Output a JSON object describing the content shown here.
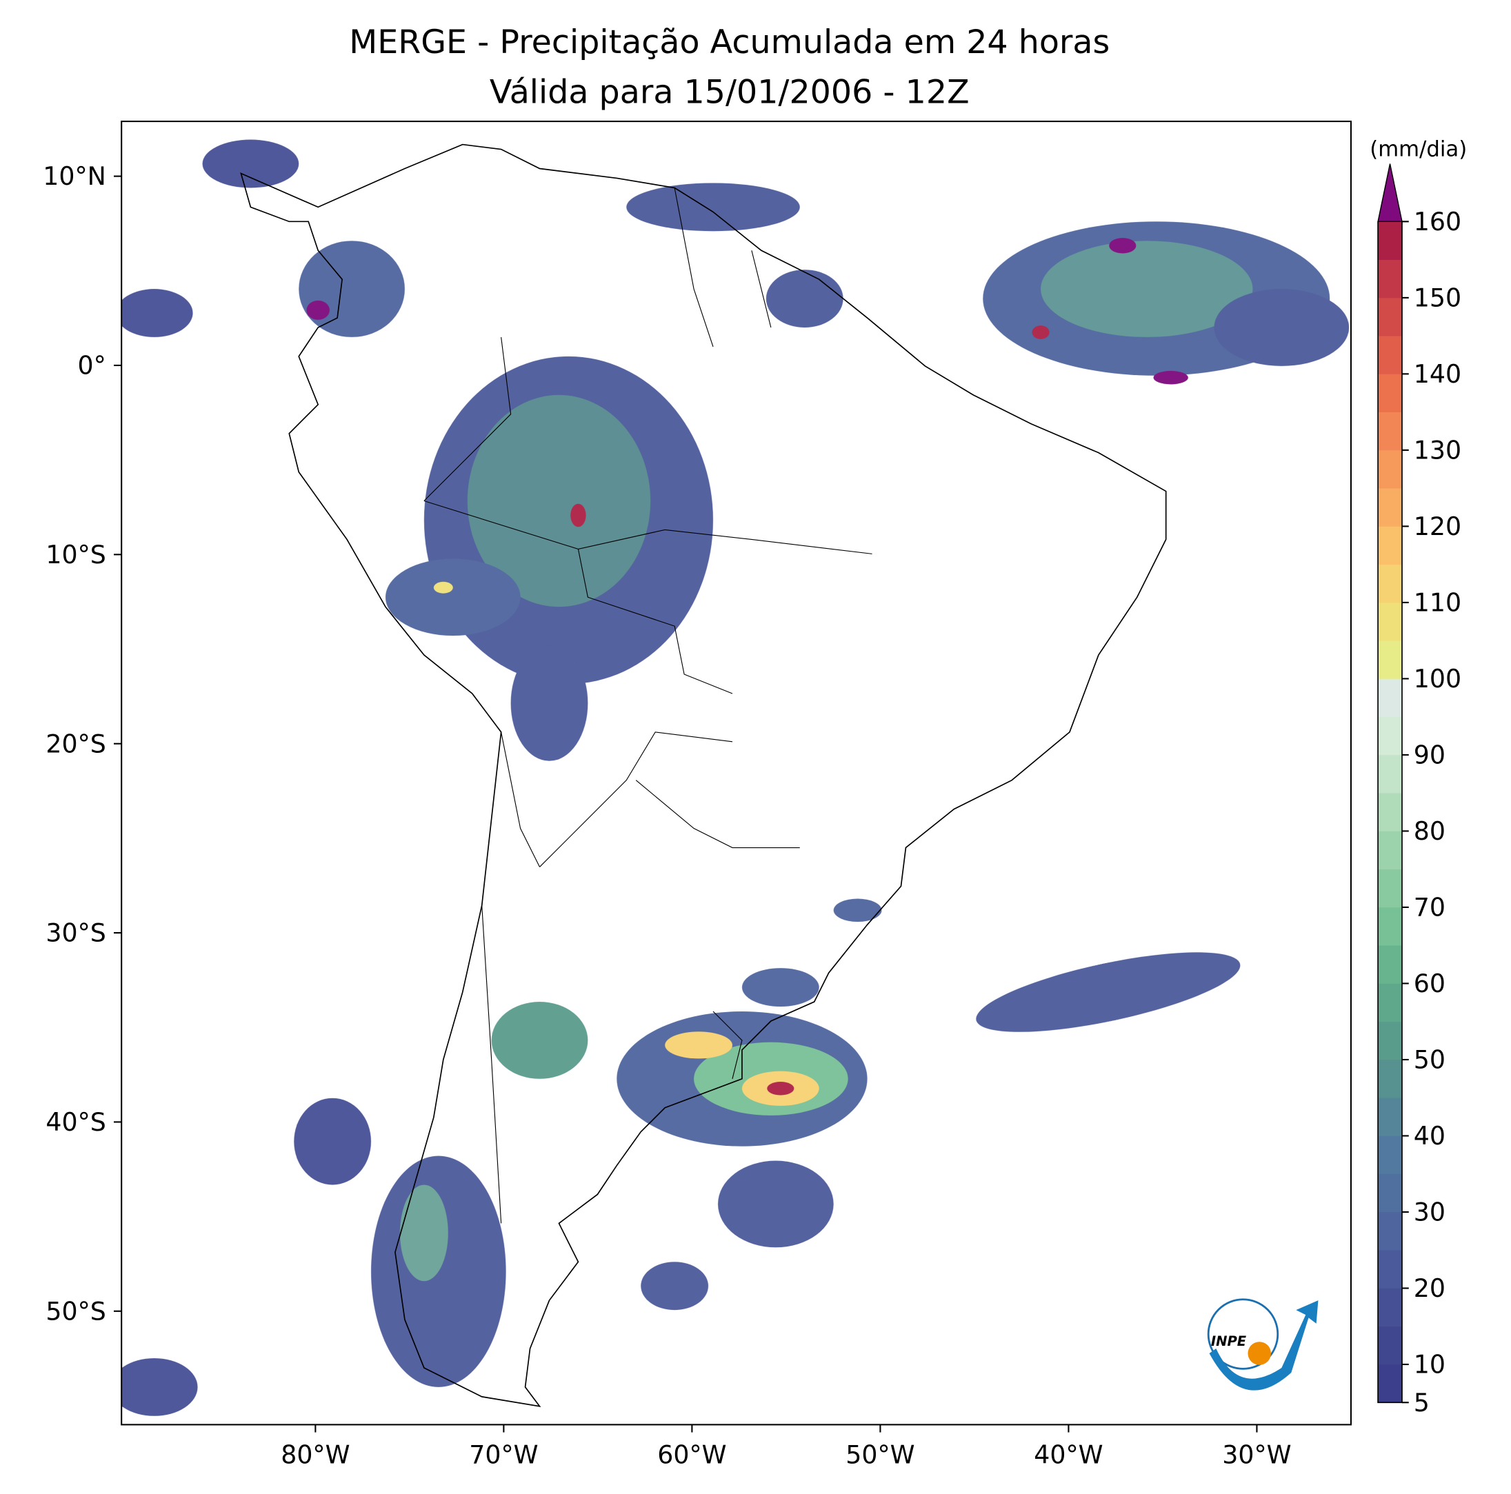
{
  "title": [
    "MERGE - Precipitação Acumulada em 24 horas",
    "Válida para 15/01/2006 - 12Z"
  ],
  "map": {
    "lonlim": [
      -90.3,
      -25
    ],
    "latlim": [
      -56,
      12.9
    ],
    "xticks": [
      {
        "value": -80,
        "label": "80°W"
      },
      {
        "value": -70,
        "label": "70°W"
      },
      {
        "value": -60,
        "label": "60°W"
      },
      {
        "value": -50,
        "label": "50°W"
      },
      {
        "value": -40,
        "label": "40°W"
      },
      {
        "value": -30,
        "label": "30°W"
      }
    ],
    "yticks": [
      {
        "value": 10,
        "label": "10°N"
      },
      {
        "value": 0,
        "label": "0°"
      },
      {
        "value": -10,
        "label": "10°S"
      },
      {
        "value": -20,
        "label": "20°S"
      },
      {
        "value": -30,
        "label": "30°S"
      },
      {
        "value": -40,
        "label": "40°S"
      },
      {
        "value": -50,
        "label": "50°S"
      }
    ]
  },
  "colorbar": {
    "label": "(mm/dia)",
    "levels": [
      5,
      10,
      15,
      20,
      25,
      30,
      35,
      40,
      45,
      50,
      55,
      60,
      65,
      70,
      75,
      80,
      85,
      90,
      95,
      100,
      105,
      110,
      115,
      120,
      125,
      130,
      135,
      140,
      145,
      150,
      155,
      160
    ],
    "colors": [
      "#3b3f8c",
      "#41478f",
      "#465095",
      "#4b5a9a",
      "#4e659e",
      "#5070a0",
      "#5279a0",
      "#548598",
      "#579190",
      "#5a9c8c",
      "#5fa88c",
      "#68b48f",
      "#78c096",
      "#8acaa0",
      "#9dd3ac",
      "#b0dcb9",
      "#c3e4c8",
      "#d3ebd7",
      "#dce9e4",
      "#e8ec88",
      "#f0e07a",
      "#f7d272",
      "#fac06a",
      "#f9ad63",
      "#f69a5c",
      "#f28655",
      "#ec714d",
      "#e05e4a",
      "#d24b48",
      "#c23848",
      "#ad2046"
    ],
    "extend_color": "#7e0a7e",
    "ticks": [
      5,
      10,
      20,
      30,
      40,
      50,
      60,
      70,
      80,
      90,
      100,
      110,
      120,
      130,
      140,
      150,
      160
    ]
  },
  "logo": {
    "text": "INPE"
  }
}
